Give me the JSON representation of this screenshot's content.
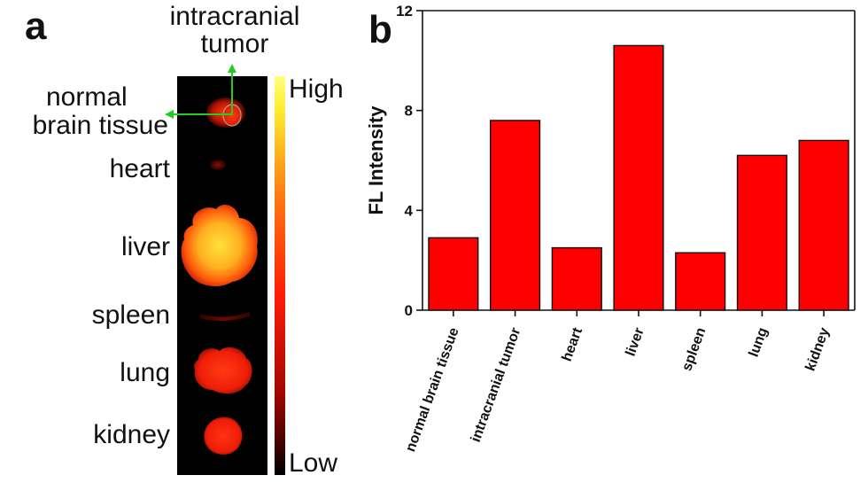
{
  "panel_a": {
    "letter": "a",
    "tumor_label_line1": "intracranial",
    "tumor_label_line2": "tumor",
    "normal_label_line1": "normal",
    "normal_label_line2": "brain tissue",
    "organ_labels": {
      "heart": "heart",
      "liver": "liver",
      "spleen": "spleen",
      "lung": "lung",
      "kidney": "kidney"
    },
    "scale_high": "High",
    "scale_low": "Low",
    "colors": {
      "arrow": "#22cc22",
      "image_bg": "#000000"
    }
  },
  "panel_b": {
    "letter": "b"
  },
  "chart_data": {
    "type": "bar",
    "categories": [
      "normal brain tissue",
      "intracranial tumor",
      "heart",
      "liver",
      "spleen",
      "lung",
      "kidney"
    ],
    "values": [
      2.9,
      7.6,
      2.5,
      10.6,
      2.3,
      6.2,
      6.8
    ],
    "ylabel": "FL Intensity",
    "xlabel": "",
    "ylim": [
      0,
      12
    ],
    "yticks": [
      0,
      4,
      8,
      12
    ],
    "bar_color": "#ff0000",
    "grid": false
  }
}
